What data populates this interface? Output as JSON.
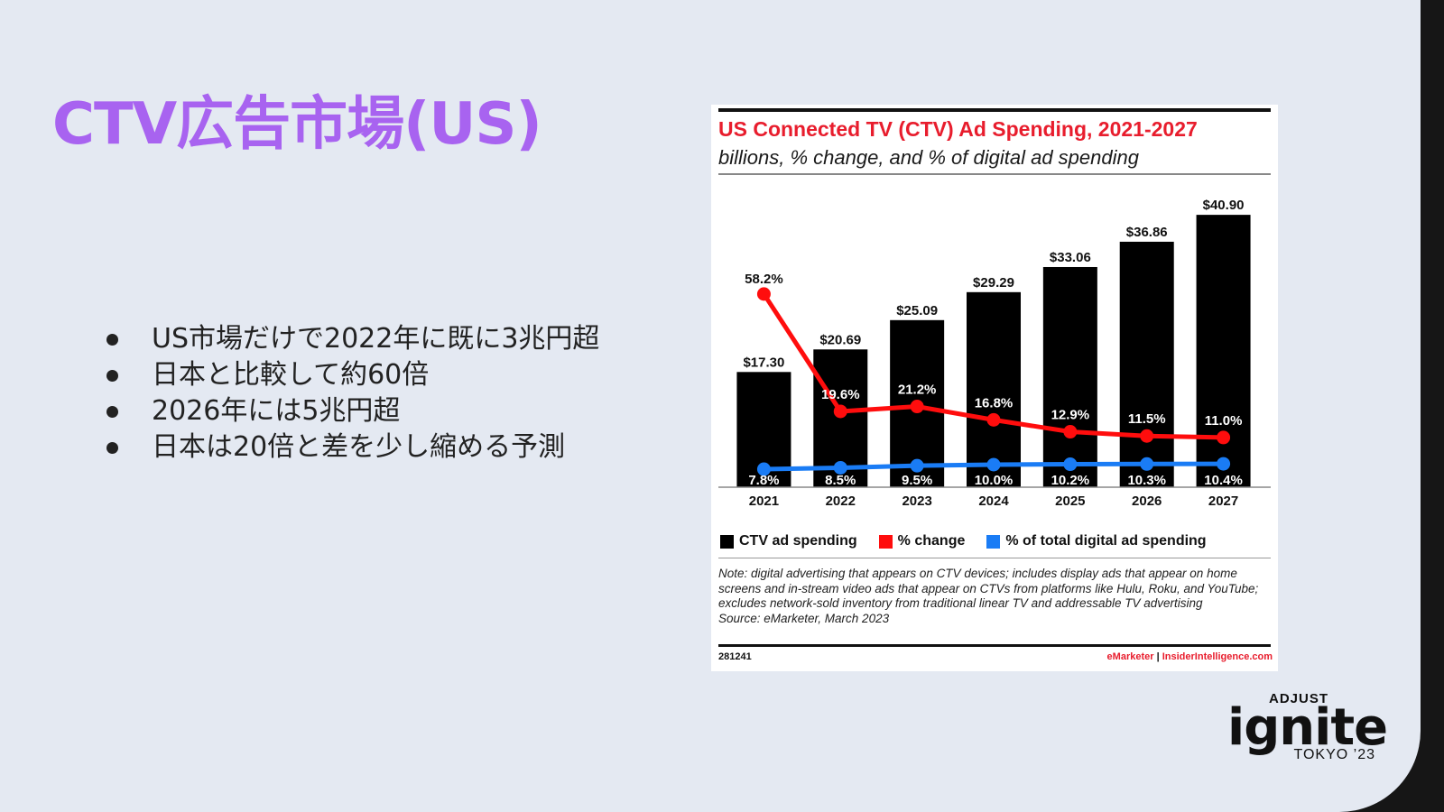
{
  "slide": {
    "title": "CTV広告市場(US)",
    "bullets": [
      "US市場だけで2022年に既に3兆円超",
      "日本と比較して約60倍",
      "2026年には5兆円超",
      "日本は20倍と差を少し縮める予測"
    ]
  },
  "colors": {
    "title": "#a863f0",
    "bar": "#000000",
    "change_line": "#ff0d0d",
    "share_line": "#1a7cf5",
    "chart_title": "#e81d2d"
  },
  "chart_data": {
    "type": "bar",
    "title": "US Connected TV (CTV) Ad Spending, 2021-2027",
    "subtitle": "billions, % change, and % of digital ad spending",
    "categories": [
      "2021",
      "2022",
      "2023",
      "2024",
      "2025",
      "2026",
      "2027"
    ],
    "series": [
      {
        "name": "CTV ad spending",
        "type": "bar",
        "values": [
          17.3,
          20.69,
          25.09,
          29.29,
          33.06,
          36.86,
          40.9
        ],
        "labels": [
          "$17.30",
          "$20.69",
          "$25.09",
          "$29.29",
          "$33.06",
          "$36.86",
          "$40.90"
        ]
      },
      {
        "name": "% change",
        "type": "line",
        "values": [
          58.2,
          19.6,
          21.2,
          16.8,
          12.9,
          11.5,
          11.0
        ],
        "labels": [
          "58.2%",
          "19.6%",
          "21.2%",
          "16.8%",
          "12.9%",
          "11.5%",
          "11.0%"
        ]
      },
      {
        "name": "% of total digital ad spending",
        "type": "line",
        "values": [
          7.8,
          8.5,
          9.5,
          10.0,
          10.2,
          10.3,
          10.4
        ],
        "labels": [
          "7.8%",
          "8.5%",
          "9.5%",
          "10.0%",
          "10.2%",
          "10.3%",
          "10.4%"
        ]
      }
    ],
    "legend": [
      "CTV ad spending",
      "% change",
      "% of total digital ad spending"
    ],
    "legend_position": "bottom",
    "note": "Note: digital advertising that appears on CTV devices; includes display ads that appear on home screens and in-stream video ads that appear on CTVs from platforms like Hulu, Roku, and YouTube; excludes network-sold inventory from traditional linear TV and addressable TV advertising",
    "source": "Source: eMarketer, March 2023",
    "chart_id": "281241",
    "brand_left": "eMarketer",
    "brand_sep": " | ",
    "brand_right": "InsiderIntelligence.com"
  },
  "logo": {
    "brand": "ADJUST",
    "name": "ignite",
    "event": "TOKYO ’23"
  }
}
